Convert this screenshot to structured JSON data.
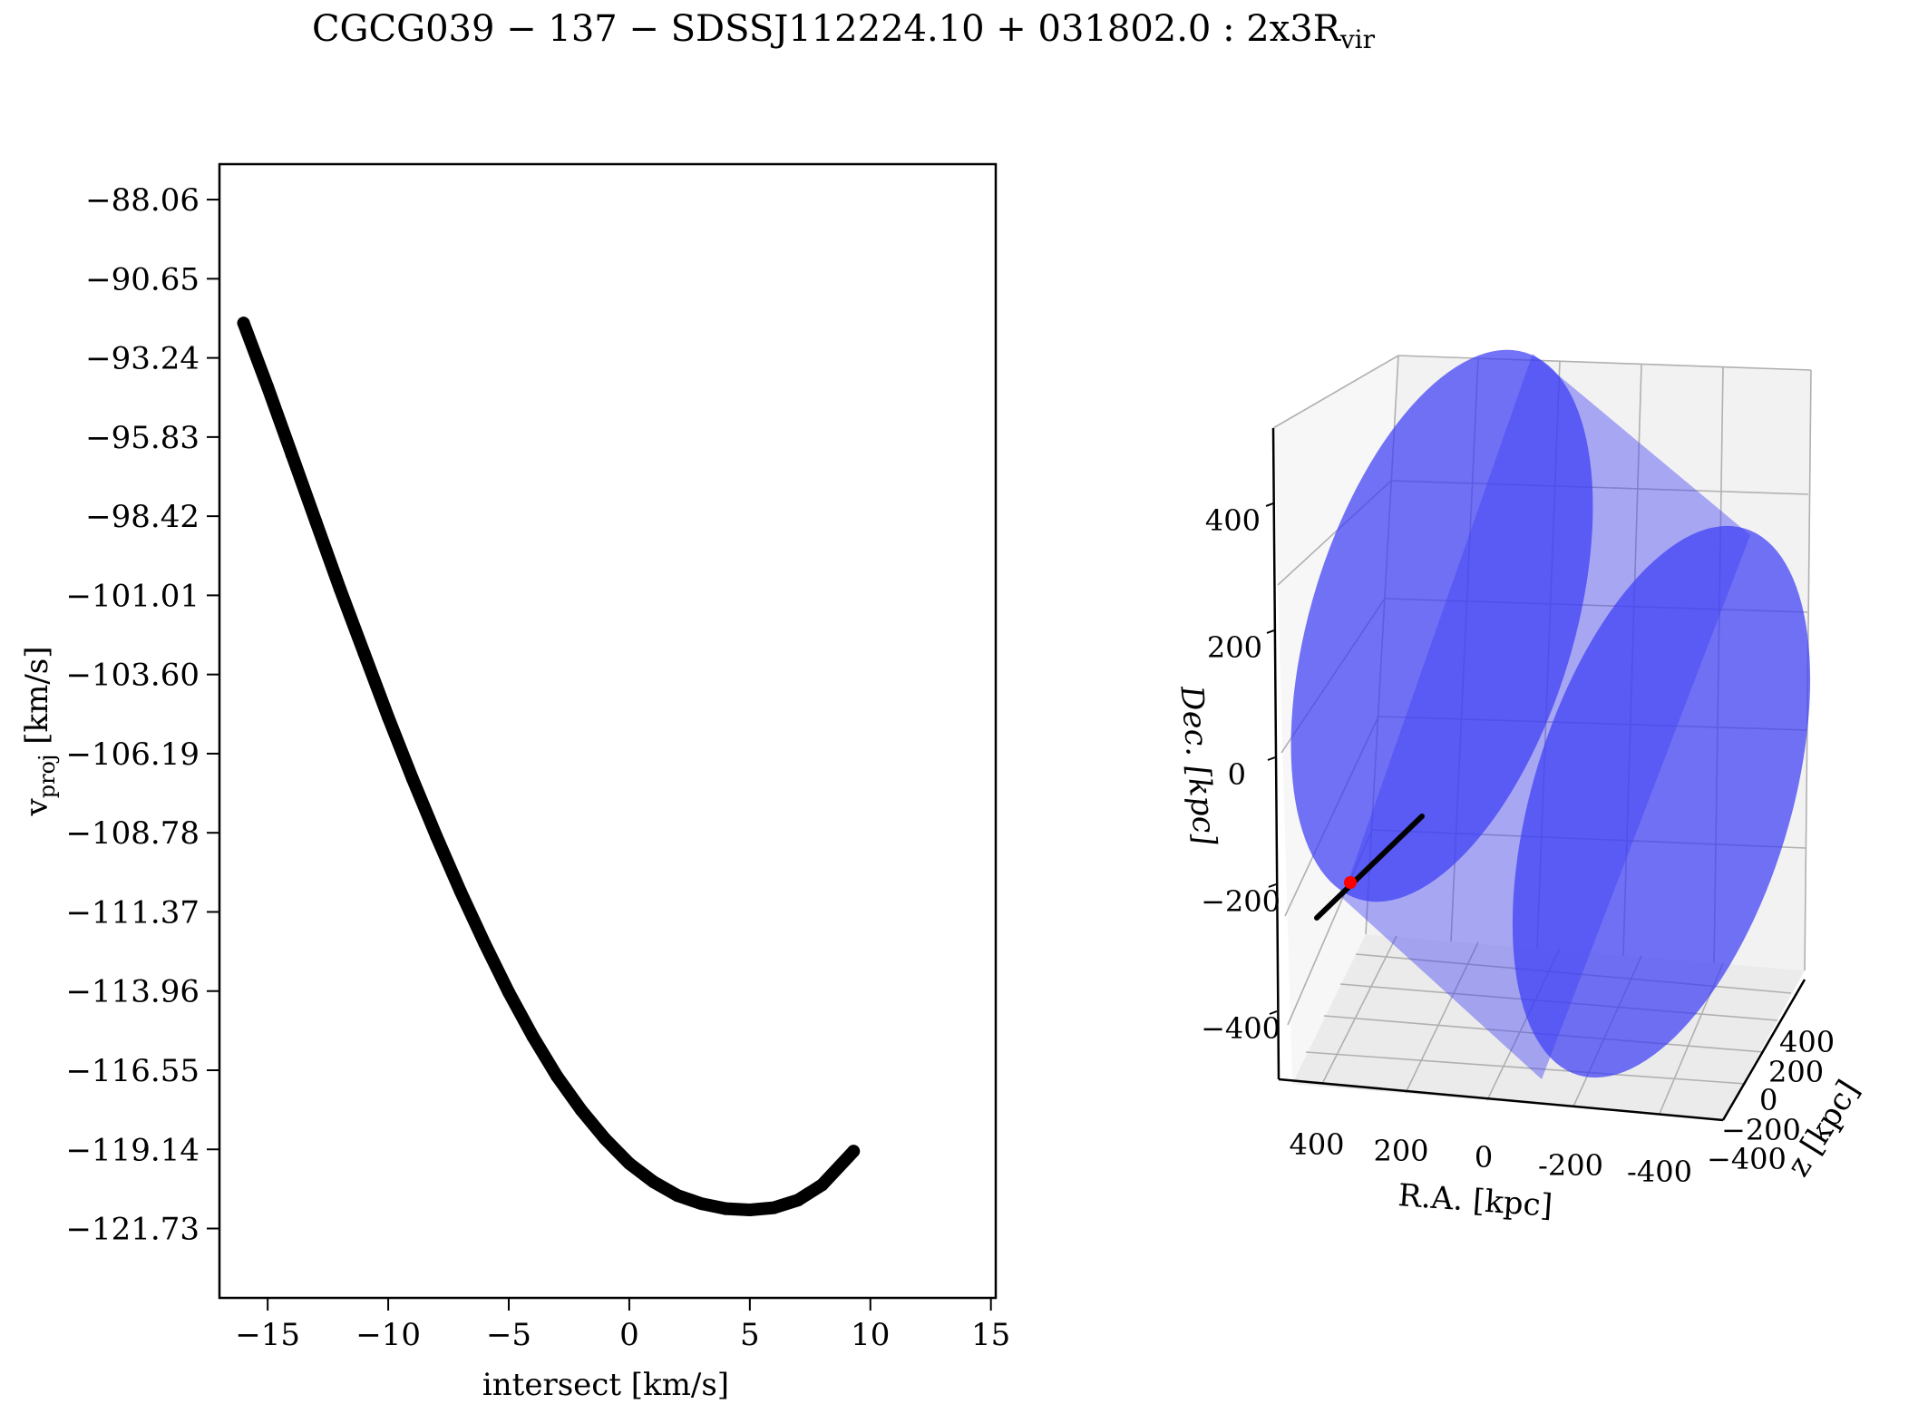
{
  "figure": {
    "title_main": "CGCG039 − 137 − SDSSJ112224.10 + 031802.0 :  2x3R",
    "title_sub": "vir"
  },
  "chart_data": [
    {
      "type": "scatter",
      "title": "",
      "xlabel": "intersect [km/s]",
      "ylabel_main": "v",
      "ylabel_sub": "proj",
      "ylabel_unit": " [km/s]",
      "xlim": [
        -17,
        15.2
      ],
      "ylim": [
        -124.0,
        -86.9
      ],
      "xticks": [
        -15,
        -10,
        -5,
        0,
        5,
        10,
        15
      ],
      "xtick_labels": [
        "−15",
        "−10",
        "−5",
        "0",
        "5",
        "10",
        "15"
      ],
      "yticks": [
        -88.06,
        -90.65,
        -93.24,
        -95.83,
        -98.42,
        -101.01,
        -103.6,
        -106.19,
        -108.78,
        -111.37,
        -113.96,
        -116.55,
        -119.14,
        -121.73
      ],
      "ytick_labels": [
        "−88.06",
        "−90.65",
        "−93.24",
        "−95.83",
        "−98.42",
        "−101.01",
        "−103.60",
        "−106.19",
        "−108.78",
        "−111.37",
        "−113.96",
        "−116.55",
        "−119.14",
        "−121.73"
      ],
      "series": [
        {
          "color": "#000000",
          "x": [
            -16.0,
            -15.0,
            -14.0,
            -13.0,
            -12.0,
            -11.0,
            -10.0,
            -9.0,
            -8.0,
            -7.0,
            -6.0,
            -5.0,
            -4.0,
            -3.0,
            -2.0,
            -1.0,
            0.0,
            1.0,
            2.0,
            3.0,
            4.0,
            5.0,
            6.0,
            7.0,
            8.0,
            9.3
          ],
          "y": [
            -92.1,
            -94.2,
            -96.4,
            -98.6,
            -100.8,
            -102.9,
            -105.0,
            -107.0,
            -108.9,
            -110.7,
            -112.4,
            -114.0,
            -115.45,
            -116.75,
            -117.85,
            -118.8,
            -119.6,
            -120.2,
            -120.65,
            -120.92,
            -121.08,
            -121.12,
            -121.05,
            -120.8,
            -120.3,
            -119.2
          ]
        }
      ]
    },
    {
      "type": "3d-cylinder",
      "title": "",
      "xlabel": "R.A. [kpc]",
      "ylabel": "Dec. [kpc]",
      "zlabel": "z [kpc]",
      "ra_ticks": [
        "400",
        "200",
        "0",
        "-200",
        "-400"
      ],
      "dec_ticks": [
        "400",
        "200",
        "0",
        "−200",
        "−400"
      ],
      "z_ticks": [
        "400",
        "200",
        "0",
        "−200",
        "−400"
      ],
      "cylinder_color": "#3d3df5",
      "sightline_color": "#000000",
      "marker_color": "#ff0000",
      "grid": true
    }
  ]
}
